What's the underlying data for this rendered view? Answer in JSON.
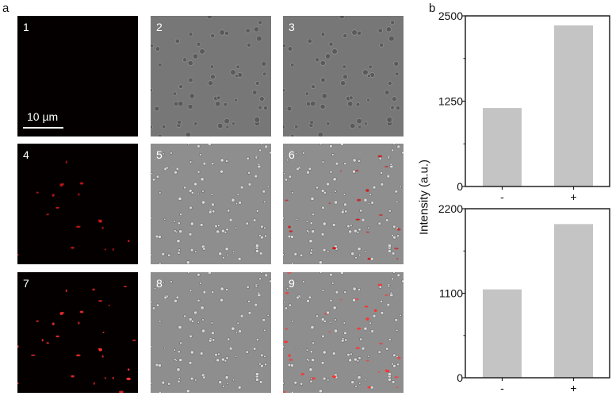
{
  "figure": {
    "panel_a_label": "a",
    "panel_b_label": "b",
    "scale_bar": "10 µm",
    "micrographs": [
      {
        "number": "1",
        "type": "fluorescence",
        "red_signal": "none"
      },
      {
        "number": "2",
        "type": "brightfield",
        "red_signal": "none"
      },
      {
        "number": "3",
        "type": "merge",
        "red_signal": "none"
      },
      {
        "number": "4",
        "type": "fluorescence",
        "red_signal": "weak"
      },
      {
        "number": "5",
        "type": "brightfield",
        "red_signal": "none"
      },
      {
        "number": "6",
        "type": "merge",
        "red_signal": "weak"
      },
      {
        "number": "7",
        "type": "fluorescence",
        "red_signal": "strong"
      },
      {
        "number": "8",
        "type": "brightfield",
        "red_signal": "none"
      },
      {
        "number": "9",
        "type": "merge",
        "red_signal": "strong"
      }
    ],
    "ylabel": "Intensity (a.u.)"
  },
  "chart_data": [
    {
      "type": "bar",
      "categories": [
        "-",
        "+"
      ],
      "values": [
        1150,
        2360
      ],
      "ylim": [
        0,
        2500
      ],
      "yticks": [
        "0",
        "1250",
        "2500"
      ],
      "ylabel": "Intensity (a.u.)",
      "bar_color": "#c4c4c4",
      "grid": false
    },
    {
      "type": "bar",
      "categories": [
        "-",
        "+"
      ],
      "values": [
        1150,
        2000
      ],
      "ylim": [
        0,
        2200
      ],
      "yticks": [
        "0",
        "1100",
        "2200"
      ],
      "ylabel": "Intensity (a.u.)",
      "bar_color": "#c4c4c4",
      "grid": false
    }
  ]
}
